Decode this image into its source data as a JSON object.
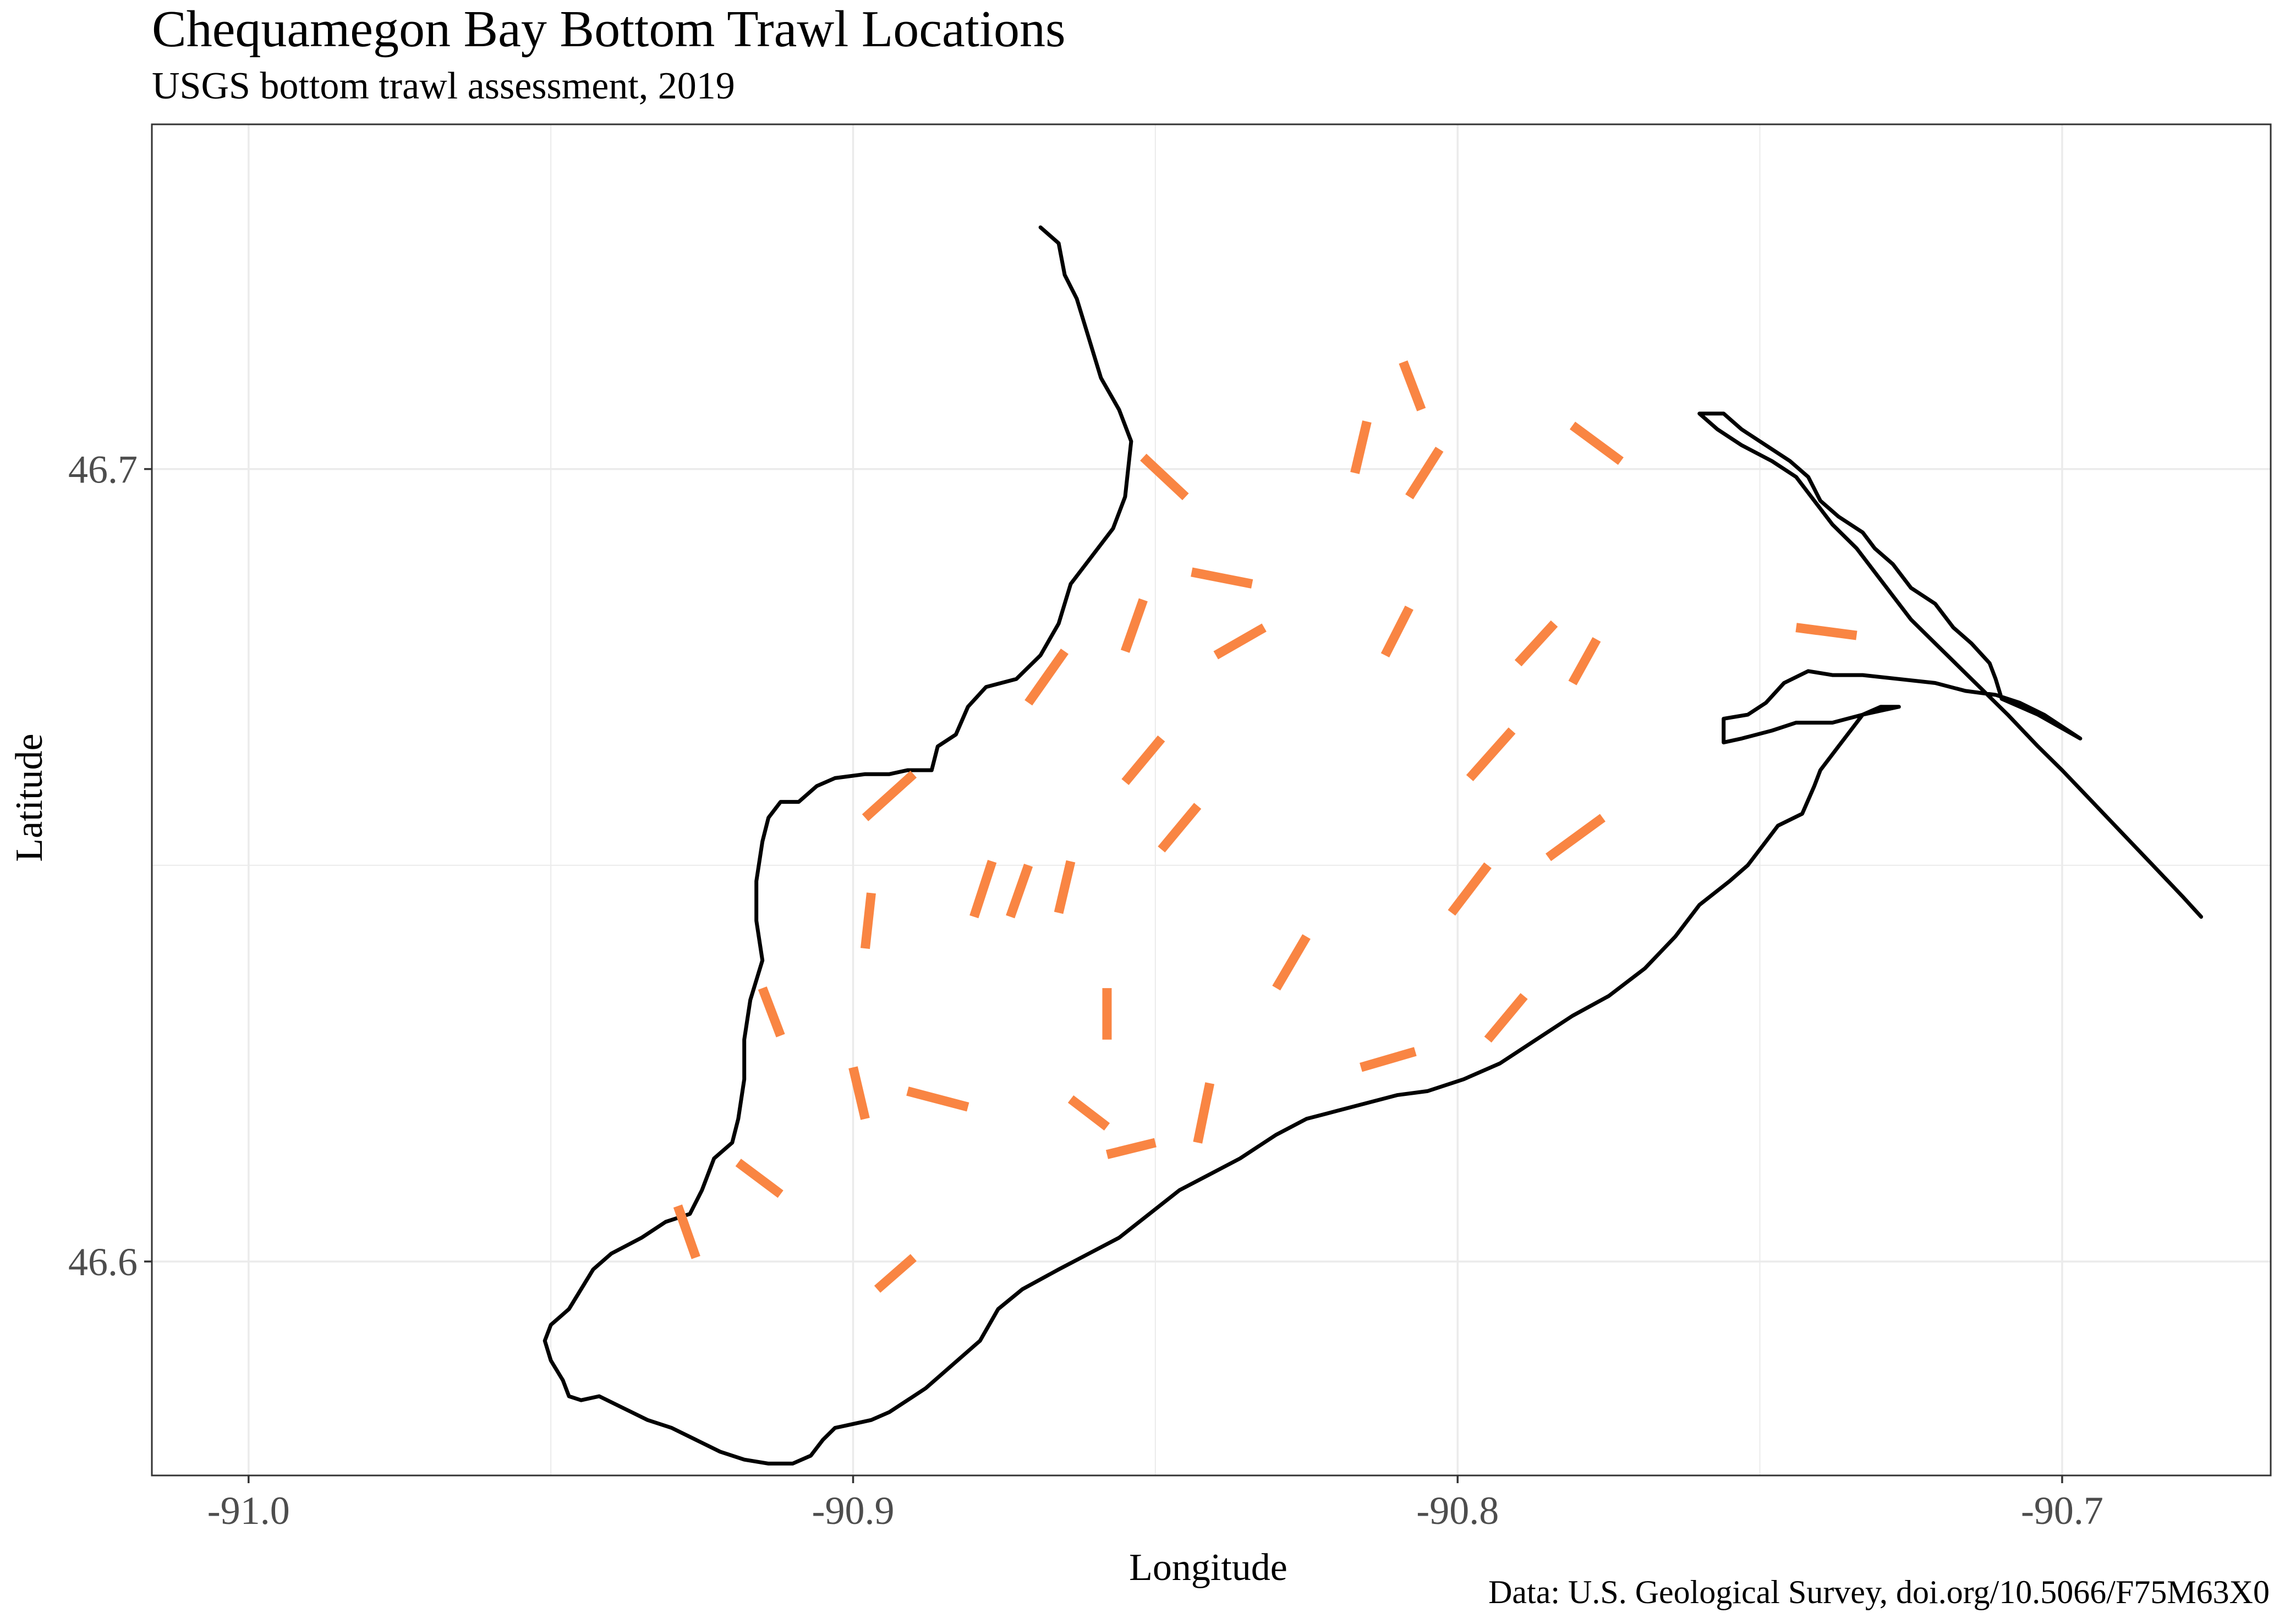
{
  "title": "Chequamegon Bay Bottom Trawl Locations",
  "subtitle": "USGS bottom trawl assessment,  2019",
  "caption": "Data: U.S. Geological Survey, doi.org/10.5066/F75M63X0",
  "axes": {
    "xlabel": "Longitude",
    "ylabel": "Latitude",
    "xticks": [
      {
        "value": -91.0,
        "label": "-91.0"
      },
      {
        "value": -90.9,
        "label": "-90.9"
      },
      {
        "value": -90.8,
        "label": "-90.8"
      },
      {
        "value": -90.7,
        "label": "-90.7"
      }
    ],
    "yticks": [
      {
        "value": 46.6,
        "label": "46.6"
      },
      {
        "value": 46.7,
        "label": "46.7"
      }
    ],
    "xlim": [
      -91.016,
      -90.6655
    ],
    "ylim": [
      46.573,
      46.7435
    ],
    "grid": true
  },
  "colors": {
    "trawl": "#F98543",
    "shoreline": "#000000",
    "grid": "#EBEBEB",
    "panel_border": "#333333"
  },
  "shoreline": [
    [
      [
        -90.869,
        46.7305
      ],
      [
        -90.866,
        46.7285
      ],
      [
        -90.865,
        46.7245
      ],
      [
        -90.863,
        46.7215
      ],
      [
        -90.861,
        46.7165
      ],
      [
        -90.859,
        46.7115
      ],
      [
        -90.856,
        46.7075
      ],
      [
        -90.854,
        46.7035
      ],
      [
        -90.855,
        46.6965
      ],
      [
        -90.857,
        46.6925
      ],
      [
        -90.86,
        46.6895
      ],
      [
        -90.864,
        46.6855
      ],
      [
        -90.866,
        46.6805
      ],
      [
        -90.869,
        46.6765
      ],
      [
        -90.873,
        46.6735
      ],
      [
        -90.878,
        46.6725
      ],
      [
        -90.881,
        46.67
      ],
      [
        -90.883,
        46.6665
      ],
      [
        -90.886,
        46.665
      ],
      [
        -90.887,
        46.662
      ],
      [
        -90.891,
        46.662
      ],
      [
        -90.894,
        46.6615
      ],
      [
        -90.898,
        46.6615
      ],
      [
        -90.903,
        46.661
      ],
      [
        -90.906,
        46.66
      ],
      [
        -90.909,
        46.658
      ],
      [
        -90.912,
        46.658
      ],
      [
        -90.914,
        46.656
      ],
      [
        -90.915,
        46.653
      ],
      [
        -90.916,
        46.648
      ],
      [
        -90.916,
        46.643
      ],
      [
        -90.915,
        46.638
      ],
      [
        -90.917,
        46.633
      ],
      [
        -90.918,
        46.628
      ],
      [
        -90.918,
        46.623
      ],
      [
        -90.919,
        46.618
      ],
      [
        -90.92,
        46.615
      ],
      [
        -90.923,
        46.613
      ],
      [
        -90.925,
        46.609
      ],
      [
        -90.927,
        46.606
      ],
      [
        -90.931,
        46.605
      ],
      [
        -90.935,
        46.603
      ],
      [
        -90.94,
        46.601
      ],
      [
        -90.943,
        46.599
      ],
      [
        -90.945,
        46.5965
      ],
      [
        -90.947,
        46.594
      ],
      [
        -90.95,
        46.592
      ],
      [
        -90.951,
        46.59
      ],
      [
        -90.95,
        46.5875
      ],
      [
        -90.948,
        46.585
      ],
      [
        -90.947,
        46.583
      ],
      [
        -90.945,
        46.5825
      ],
      [
        -90.942,
        46.583
      ],
      [
        -90.938,
        46.5815
      ],
      [
        -90.934,
        46.58
      ],
      [
        -90.93,
        46.579
      ],
      [
        -90.926,
        46.5775
      ],
      [
        -90.922,
        46.576
      ],
      [
        -90.918,
        46.575
      ],
      [
        -90.914,
        46.5745
      ],
      [
        -90.91,
        46.5745
      ],
      [
        -90.907,
        46.5755
      ],
      [
        -90.905,
        46.5775
      ],
      [
        -90.903,
        46.579
      ],
      [
        -90.9,
        46.5795
      ],
      [
        -90.897,
        46.58
      ],
      [
        -90.894,
        46.581
      ],
      [
        -90.891,
        46.5825
      ],
      [
        -90.888,
        46.584
      ],
      [
        -90.885,
        46.586
      ],
      [
        -90.882,
        46.588
      ],
      [
        -90.879,
        46.59
      ],
      [
        -90.876,
        46.594
      ],
      [
        -90.872,
        46.5965
      ],
      [
        -90.866,
        46.599
      ],
      [
        -90.861,
        46.601
      ],
      [
        -90.856,
        46.603
      ],
      [
        -90.851,
        46.606
      ],
      [
        -90.846,
        46.609
      ],
      [
        -90.841,
        46.611
      ],
      [
        -90.836,
        46.613
      ],
      [
        -90.83,
        46.616
      ],
      [
        -90.825,
        46.618
      ],
      [
        -90.82,
        46.619
      ],
      [
        -90.815,
        46.62
      ],
      [
        -90.81,
        46.621
      ],
      [
        -90.805,
        46.6215
      ],
      [
        -90.799,
        46.623
      ],
      [
        -90.793,
        46.625
      ],
      [
        -90.787,
        46.628
      ],
      [
        -90.781,
        46.631
      ],
      [
        -90.775,
        46.6335
      ],
      [
        -90.769,
        46.637
      ],
      [
        -90.764,
        46.641
      ],
      [
        -90.76,
        46.645
      ],
      [
        -90.755,
        46.648
      ],
      [
        -90.752,
        46.65
      ],
      [
        -90.749,
        46.653
      ],
      [
        -90.747,
        46.655
      ],
      [
        -90.743,
        46.6565
      ],
      [
        -90.741,
        46.66
      ],
      [
        -90.74,
        46.662
      ],
      [
        -90.737,
        46.665
      ],
      [
        -90.735,
        46.667
      ],
      [
        -90.733,
        46.669
      ],
      [
        -90.73,
        46.67
      ],
      [
        -90.727,
        46.67
      ],
      [
        -90.733,
        46.669
      ],
      [
        -90.738,
        46.668
      ],
      [
        -90.744,
        46.668
      ],
      [
        -90.748,
        46.667
      ],
      [
        -90.753,
        46.666
      ],
      [
        -90.756,
        46.6655
      ],
      [
        -90.756,
        46.6685
      ],
      [
        -90.752,
        46.669
      ],
      [
        -90.749,
        46.6705
      ],
      [
        -90.746,
        46.673
      ],
      [
        -90.742,
        46.6745
      ],
      [
        -90.738,
        46.674
      ],
      [
        -90.733,
        46.674
      ],
      [
        -90.727,
        46.6735
      ],
      [
        -90.721,
        46.673
      ],
      [
        -90.716,
        46.672
      ],
      [
        -90.711,
        46.6715
      ],
      [
        -90.707,
        46.6705
      ],
      [
        -90.703,
        46.669
      ],
      [
        -90.7,
        46.6675
      ],
      [
        -90.697,
        46.666
      ],
      [
        -90.704,
        46.669
      ],
      [
        -90.71,
        46.671
      ],
      [
        -90.711,
        46.6735
      ],
      [
        -90.712,
        46.6755
      ],
      [
        -90.715,
        46.678
      ],
      [
        -90.718,
        46.68
      ],
      [
        -90.721,
        46.683
      ],
      [
        -90.725,
        46.685
      ],
      [
        -90.728,
        46.688
      ],
      [
        -90.731,
        46.69
      ],
      [
        -90.733,
        46.692
      ],
      [
        -90.737,
        46.694
      ],
      [
        -90.74,
        46.696
      ],
      [
        -90.742,
        46.699
      ],
      [
        -90.745,
        46.701
      ],
      [
        -90.749,
        46.703
      ],
      [
        -90.753,
        46.705
      ],
      [
        -90.756,
        46.707
      ],
      [
        -90.76,
        46.707
      ],
      [
        -90.757,
        46.705
      ],
      [
        -90.753,
        46.703
      ],
      [
        -90.748,
        46.701
      ],
      [
        -90.744,
        46.699
      ],
      [
        -90.741,
        46.696
      ],
      [
        -90.738,
        46.693
      ],
      [
        -90.734,
        46.69
      ],
      [
        -90.731,
        46.687
      ],
      [
        -90.728,
        46.684
      ],
      [
        -90.725,
        46.681
      ],
      [
        -90.721,
        46.678
      ],
      [
        -90.717,
        46.675
      ],
      [
        -90.713,
        46.672
      ],
      [
        -90.709,
        46.669
      ],
      [
        -90.704,
        46.665
      ],
      [
        -90.7,
        46.662
      ],
      [
        -90.695,
        46.658
      ],
      [
        -90.69,
        46.654
      ],
      [
        -90.685,
        46.65
      ],
      [
        -90.68,
        46.646
      ],
      [
        -90.677,
        46.6435
      ]
    ]
  ],
  "trawls": [
    [
      [
        -90.809,
        46.7135
      ],
      [
        -90.806,
        46.7075
      ]
    ],
    [
      [
        -90.815,
        46.706
      ],
      [
        -90.817,
        46.6995
      ]
    ],
    [
      [
        -90.803,
        46.7025
      ],
      [
        -90.808,
        46.6965
      ]
    ],
    [
      [
        -90.781,
        46.7055
      ],
      [
        -90.773,
        46.701
      ]
    ],
    [
      [
        -90.852,
        46.7015
      ],
      [
        -90.845,
        46.6965
      ]
    ],
    [
      [
        -90.844,
        46.687
      ],
      [
        -90.834,
        46.6855
      ]
    ],
    [
      [
        -90.852,
        46.6835
      ],
      [
        -90.855,
        46.677
      ]
    ],
    [
      [
        -90.832,
        46.68
      ],
      [
        -90.84,
        46.6765
      ]
    ],
    [
      [
        -90.808,
        46.6825
      ],
      [
        -90.812,
        46.6765
      ]
    ],
    [
      [
        -90.784,
        46.6805
      ],
      [
        -90.79,
        46.6755
      ]
    ],
    [
      [
        -90.777,
        46.6785
      ],
      [
        -90.781,
        46.673
      ]
    ],
    [
      [
        -90.744,
        46.68
      ],
      [
        -90.734,
        46.679
      ]
    ],
    [
      [
        -90.865,
        46.677
      ],
      [
        -90.871,
        46.6705
      ]
    ],
    [
      [
        -90.849,
        46.666
      ],
      [
        -90.855,
        46.6605
      ]
    ],
    [
      [
        -90.791,
        46.667
      ],
      [
        -90.798,
        46.661
      ]
    ],
    [
      [
        -90.89,
        46.6615
      ],
      [
        -90.898,
        46.656
      ]
    ],
    [
      [
        -90.843,
        46.6575
      ],
      [
        -90.849,
        46.652
      ]
    ],
    [
      [
        -90.776,
        46.656
      ],
      [
        -90.785,
        46.651
      ]
    ],
    [
      [
        -90.877,
        46.6505
      ],
      [
        -90.88,
        46.6435
      ]
    ],
    [
      [
        -90.871,
        46.65
      ],
      [
        -90.874,
        46.6435
      ]
    ],
    [
      [
        -90.864,
        46.6505
      ],
      [
        -90.866,
        46.644
      ]
    ],
    [
      [
        -90.897,
        46.6465
      ],
      [
        -90.898,
        46.6395
      ]
    ],
    [
      [
        -90.795,
        46.65
      ],
      [
        -90.801,
        46.644
      ]
    ],
    [
      [
        -90.825,
        46.641
      ],
      [
        -90.83,
        46.6345
      ]
    ],
    [
      [
        -90.858,
        46.6345
      ],
      [
        -90.858,
        46.628
      ]
    ],
    [
      [
        -90.915,
        46.6345
      ],
      [
        -90.912,
        46.6285
      ]
    ],
    [
      [
        -90.789,
        46.6335
      ],
      [
        -90.795,
        46.628
      ]
    ],
    [
      [
        -90.807,
        46.6265
      ],
      [
        -90.816,
        46.6245
      ]
    ],
    [
      [
        -90.9,
        46.6245
      ],
      [
        -90.898,
        46.618
      ]
    ],
    [
      [
        -90.891,
        46.6215
      ],
      [
        -90.881,
        46.6195
      ]
    ],
    [
      [
        -90.864,
        46.6205
      ],
      [
        -90.858,
        46.617
      ]
    ],
    [
      [
        -90.841,
        46.6225
      ],
      [
        -90.843,
        46.615
      ]
    ],
    [
      [
        -90.85,
        46.615
      ],
      [
        -90.858,
        46.6135
      ]
    ],
    [
      [
        -90.919,
        46.6125
      ],
      [
        -90.912,
        46.6085
      ]
    ],
    [
      [
        -90.929,
        46.607
      ],
      [
        -90.926,
        46.6005
      ]
    ],
    [
      [
        -90.896,
        46.5965
      ],
      [
        -90.89,
        46.6005
      ]
    ]
  ]
}
